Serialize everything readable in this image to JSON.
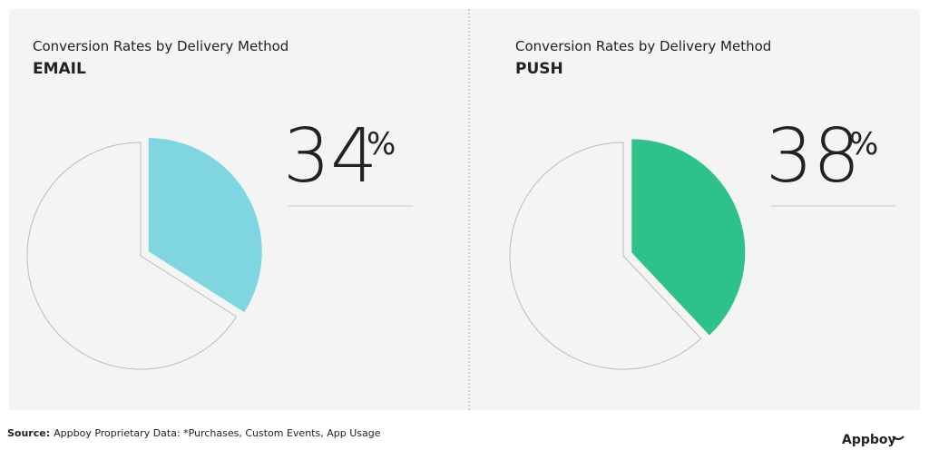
{
  "chart_data": [
    {
      "type": "pie",
      "title": "Conversion Rates by Delivery Method",
      "subtitle": "EMAIL",
      "values": [
        34
      ],
      "value_labels": [
        "34"
      ],
      "unit": "%",
      "color": "#7fd6e0"
    },
    {
      "type": "pie",
      "title": "Conversion Rates by Delivery Method",
      "subtitle": "PUSH",
      "values": [
        38
      ],
      "value_labels": [
        "38"
      ],
      "unit": "%",
      "color": "#2ec28a"
    }
  ],
  "footer": {
    "source_label": "Source:",
    "source_text": "Appboy Proprietary Data: *Purchases, Custom Events, App Usage",
    "brand": "Appboy"
  }
}
